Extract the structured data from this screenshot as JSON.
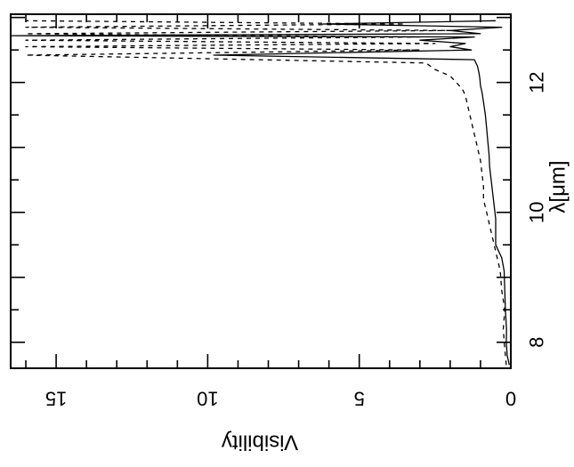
{
  "chart_data": {
    "type": "line",
    "orientation": "rotated-90",
    "xlabel": "λ[μm]",
    "ylabel": "Visibility",
    "xlim": [
      7.6,
      13.05
    ],
    "ylim": [
      0,
      16.5
    ],
    "xticks": [
      8,
      10,
      12
    ],
    "yticks": [
      0,
      5,
      10,
      15
    ],
    "grid": false,
    "series": [
      {
        "style": "solid",
        "x": [
          7.65,
          7.8,
          8.0,
          8.2,
          8.5,
          8.8,
          9.1,
          9.3,
          9.5,
          9.7,
          9.9,
          10.1,
          10.3,
          10.5,
          10.7,
          10.9,
          11.1,
          11.3,
          11.5,
          11.7,
          11.85,
          11.95,
          12.05,
          12.15,
          12.25,
          12.35,
          12.42,
          12.5,
          12.55,
          12.6,
          12.65,
          12.7,
          12.72,
          12.75,
          12.8,
          12.85,
          12.9,
          12.95
        ],
        "y": [
          0.05,
          0.12,
          0.15,
          0.14,
          0.18,
          0.2,
          0.22,
          0.3,
          0.5,
          0.5,
          0.5,
          0.55,
          0.6,
          0.65,
          0.7,
          0.72,
          0.76,
          0.8,
          0.84,
          0.9,
          0.95,
          1.0,
          1.02,
          1.05,
          1.1,
          1.2,
          9.8,
          1.3,
          2.0,
          1.5,
          3.0,
          1.2,
          16.5,
          1.0,
          2.0,
          0.3,
          6.2,
          0.5
        ]
      },
      {
        "style": "dashed",
        "x": [
          7.65,
          7.9,
          8.2,
          8.5,
          8.8,
          9.1,
          9.4,
          9.6,
          9.8,
          10.0,
          10.2,
          10.4,
          10.6,
          10.8,
          11.0,
          11.2,
          11.4,
          11.6,
          11.8,
          11.9,
          12.0,
          12.1,
          12.2,
          12.3,
          12.42,
          12.5,
          12.55,
          12.6,
          12.65,
          12.7,
          12.75,
          12.8,
          12.85,
          12.9,
          12.95
        ],
        "y": [
          0.15,
          0.2,
          0.25,
          0.2,
          0.3,
          0.35,
          0.5,
          0.6,
          0.7,
          0.8,
          0.9,
          0.9,
          0.95,
          1.0,
          1.1,
          1.2,
          1.3,
          1.4,
          1.5,
          1.6,
          1.8,
          2.0,
          2.5,
          2.8,
          16.0,
          3.0,
          16.0,
          2.5,
          16.0,
          3.0,
          16.0,
          2.0,
          16.0,
          3.5,
          16.0
        ]
      }
    ]
  }
}
